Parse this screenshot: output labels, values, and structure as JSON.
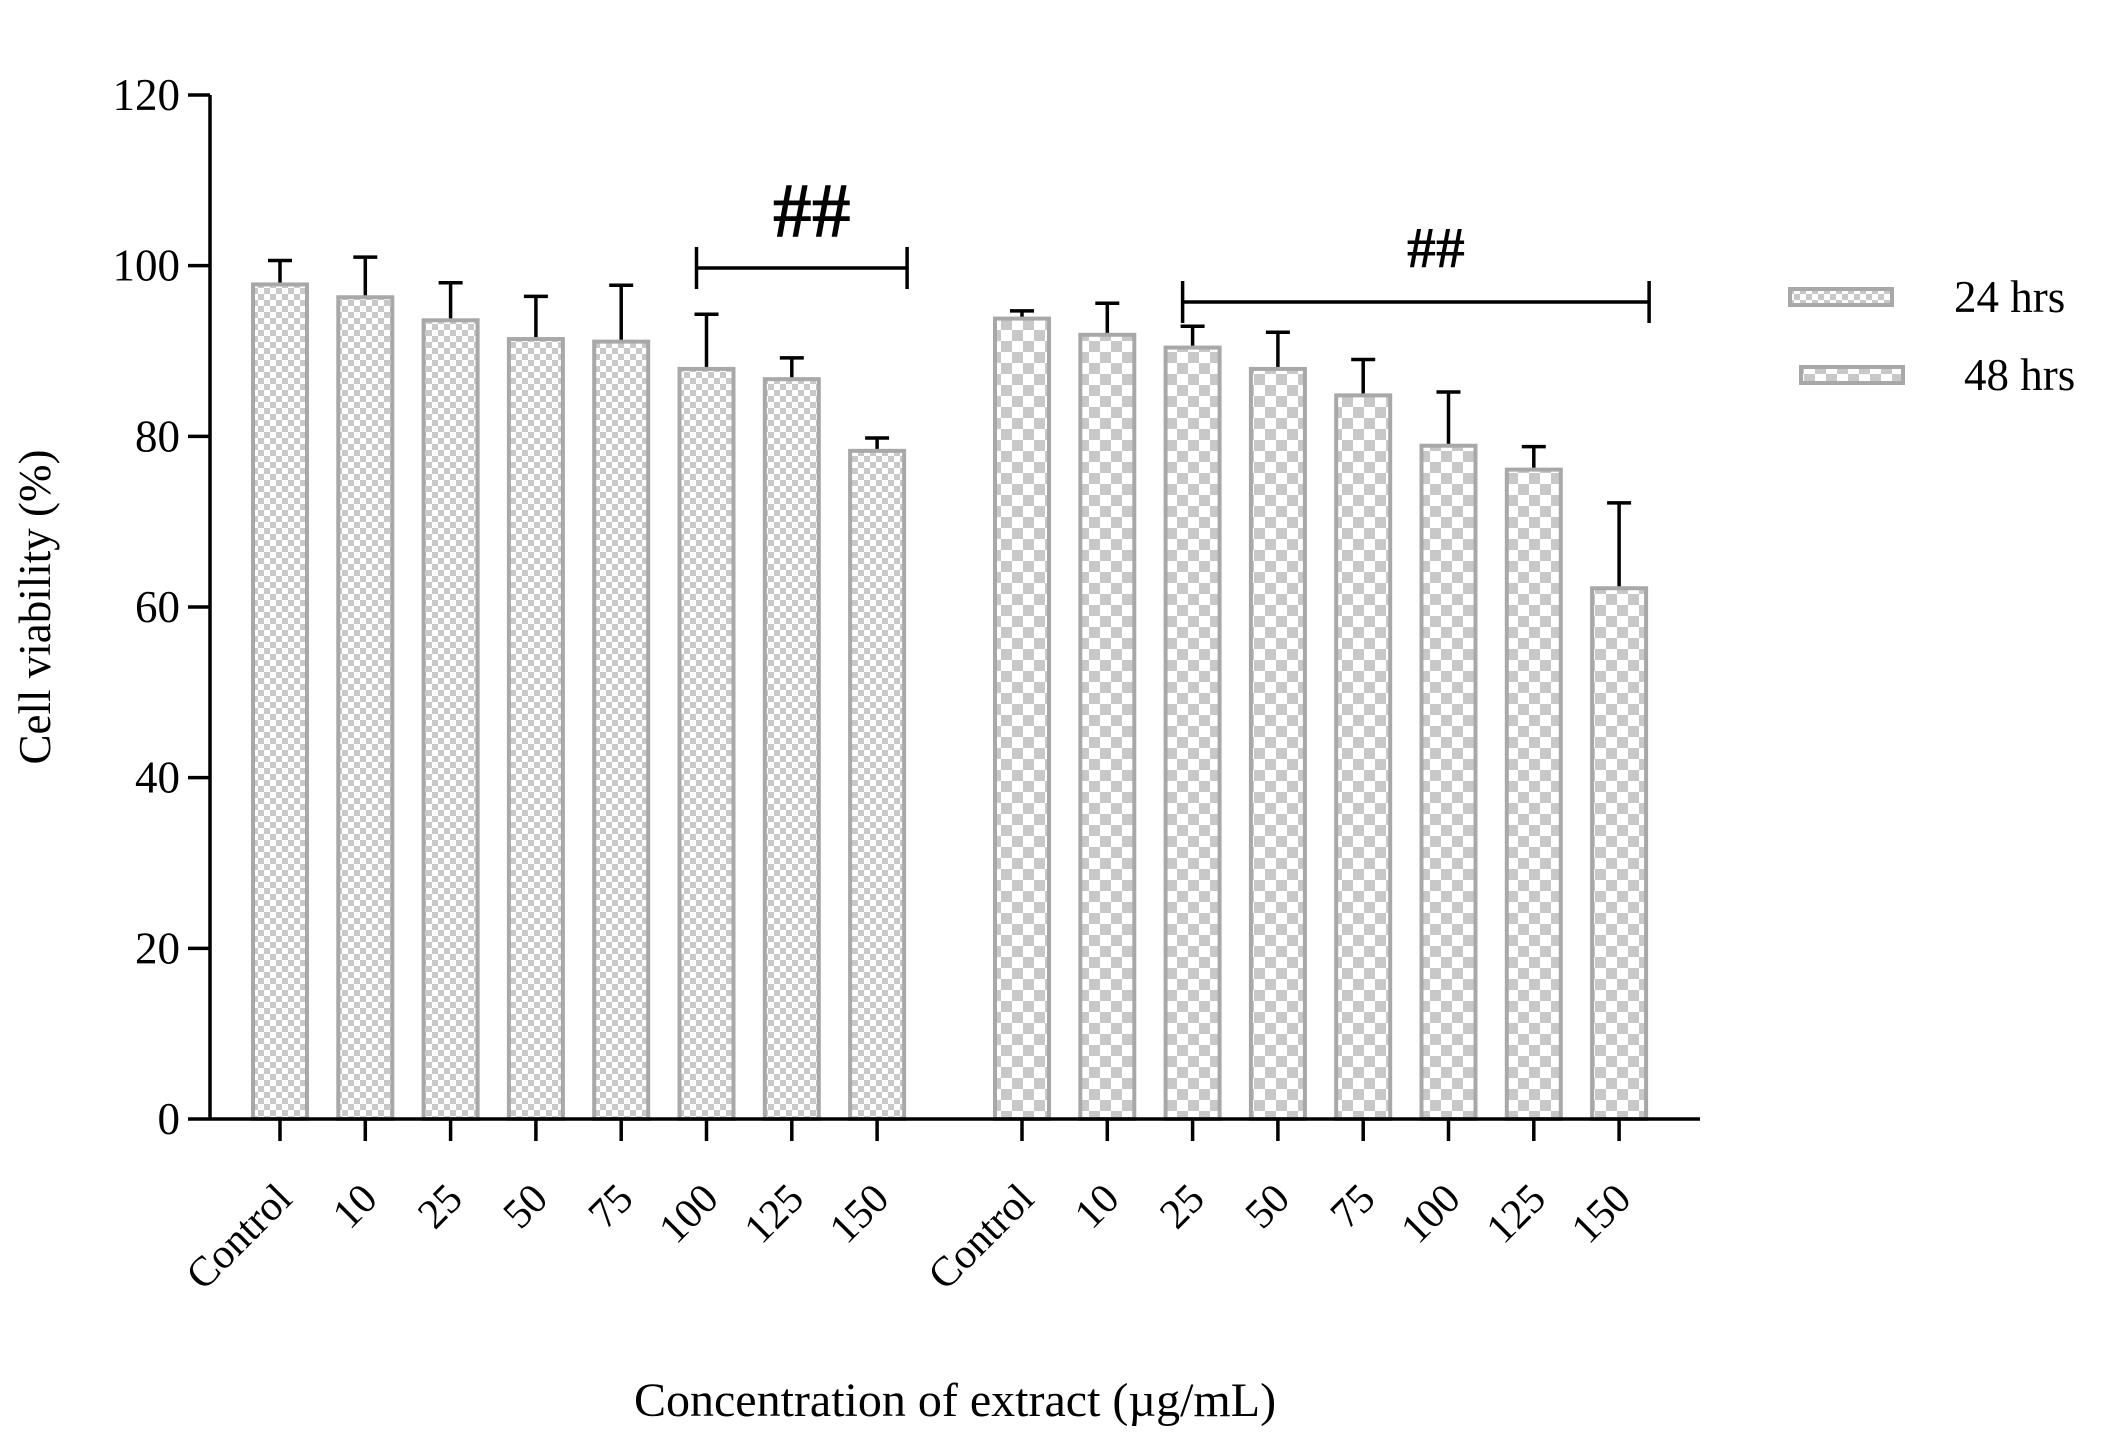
{
  "chart_data": {
    "type": "bar",
    "xlabel": "Concentration of extract (µg/mL)",
    "ylabel": "Cell viability (%)",
    "ylim": [
      0,
      120
    ],
    "yticks": [
      "0",
      "20",
      "40",
      "60",
      "80",
      "100",
      "120"
    ],
    "grid": false,
    "legend_position": "right",
    "groups": [
      {
        "name": "24 hrs",
        "categories": [
          "Control",
          "10",
          "25",
          "50",
          "75",
          "100",
          "125",
          "150"
        ],
        "values": [
          97.8,
          96.3,
          93.6,
          91.4,
          91.1,
          87.9,
          86.7,
          78.3
        ],
        "errors": [
          2.8,
          4.7,
          4.4,
          5.0,
          6.6,
          6.4,
          2.5,
          1.5
        ]
      },
      {
        "name": "48 hrs",
        "categories": [
          "Control",
          "10",
          "25",
          "50",
          "75",
          "100",
          "125",
          "150"
        ],
        "values": [
          93.8,
          91.9,
          90.4,
          87.9,
          84.8,
          78.9,
          76.1,
          62.2
        ],
        "errors": [
          0.9,
          3.7,
          2.5,
          4.3,
          4.2,
          6.3,
          2.7,
          10.0
        ]
      }
    ],
    "annotations": [
      {
        "label": "##",
        "group": 0,
        "from": 5,
        "to": 7
      },
      {
        "label": "##",
        "group": 1,
        "from": 2,
        "to": 7
      }
    ],
    "legend": [
      {
        "label": "24 hrs",
        "pattern": "fine-check"
      },
      {
        "label": "48 hrs",
        "pattern": "coarse-check"
      }
    ],
    "colors": {
      "bar_edge": "#a8a8a8",
      "check_fill": "#c8c8c8",
      "error_bar": "#000000",
      "axis": "#000000"
    }
  }
}
